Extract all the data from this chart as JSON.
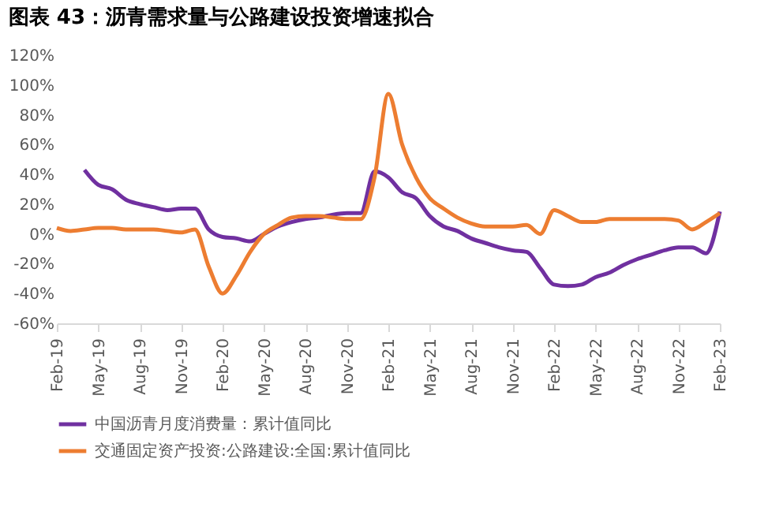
{
  "chart_data": {
    "type": "line",
    "title": "图表 43：沥青需求量与公路建设投资增速拟合",
    "categories": [
      "Feb-19",
      null,
      null,
      "May-19",
      null,
      null,
      "Aug-19",
      null,
      null,
      "Nov-19",
      null,
      null,
      "Feb-20",
      null,
      null,
      "May-20",
      null,
      null,
      "Aug-20",
      null,
      null,
      "Nov-20",
      null,
      null,
      "Feb-21",
      null,
      null,
      "May-21",
      null,
      null,
      "Aug-21",
      null,
      null,
      "Nov-21",
      null,
      null,
      "Feb-22",
      null,
      null,
      "May-22",
      null,
      null,
      "Aug-22",
      null,
      null,
      "Nov-22",
      null,
      null,
      "Feb-23"
    ],
    "series": [
      {
        "name": "中国沥青月度消费量：累计值同比",
        "color": "#7030a0",
        "values": [
          null,
          null,
          43,
          33,
          30,
          23,
          20,
          18,
          16,
          17,
          17,
          3,
          -2,
          -3,
          -5,
          0,
          5,
          8,
          10,
          11,
          13,
          14,
          14,
          42,
          38,
          28,
          24,
          12,
          5,
          2,
          -3,
          -6,
          -9,
          -11,
          -12,
          -23,
          -34,
          -35,
          -34,
          -29,
          -26,
          -21,
          -17,
          -14,
          -11,
          -9,
          -9,
          -13,
          15
        ]
      },
      {
        "name": "交通固定资产投资:公路建设:全国:累计值同比",
        "color": "#ed7d31",
        "values": [
          4,
          2,
          3,
          4,
          4,
          3,
          3,
          3,
          2,
          1,
          3,
          -22,
          -40,
          -28,
          -12,
          0,
          6,
          11,
          12,
          12,
          11,
          10,
          10,
          38,
          94,
          60,
          38,
          24,
          17,
          11,
          7,
          5,
          5,
          5,
          6,
          0,
          16,
          12,
          8,
          8,
          10,
          10,
          10,
          10,
          10,
          9,
          3,
          8,
          14
        ]
      }
    ],
    "ylim": [
      -60,
      120
    ],
    "yticks": [
      {
        "value": -60,
        "label": "-60%"
      },
      {
        "value": -40,
        "label": "-40%"
      },
      {
        "value": -20,
        "label": "-20%"
      },
      {
        "value": 0,
        "label": "0%"
      },
      {
        "value": 20,
        "label": "20%"
      },
      {
        "value": 40,
        "label": "40%"
      },
      {
        "value": 60,
        "label": "60%"
      },
      {
        "value": 80,
        "label": "80%"
      },
      {
        "value": 100,
        "label": "100%"
      },
      {
        "value": 120,
        "label": "120%"
      }
    ],
    "legend": "bottom",
    "grid": false,
    "marker": "none",
    "line_style": "solid"
  }
}
